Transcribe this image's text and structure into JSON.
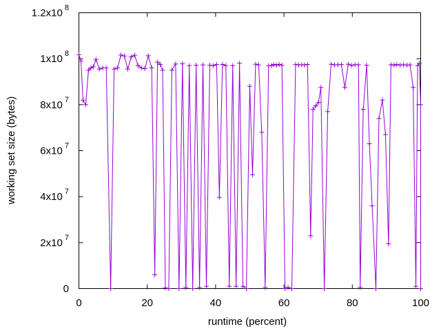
{
  "chart_data": {
    "type": "line",
    "xlabel": "runtime (percent)",
    "ylabel": "working set size (bytes)",
    "xlim": [
      0,
      100
    ],
    "ylim": [
      0,
      120000000
    ],
    "x_ticks": [
      {
        "value": 0,
        "label": "0"
      },
      {
        "value": 20,
        "label": "20"
      },
      {
        "value": 40,
        "label": "40"
      },
      {
        "value": 60,
        "label": "60"
      },
      {
        "value": 80,
        "label": "80"
      },
      {
        "value": 100,
        "label": "100"
      }
    ],
    "y_ticks": [
      {
        "value": 0,
        "mantissa": "0",
        "exponent": ""
      },
      {
        "value": 20000000,
        "mantissa": "2x10",
        "exponent": "7"
      },
      {
        "value": 40000000,
        "mantissa": "4x10",
        "exponent": "7"
      },
      {
        "value": 60000000,
        "mantissa": "6x10",
        "exponent": "7"
      },
      {
        "value": 80000000,
        "mantissa": "8x10",
        "exponent": "7"
      },
      {
        "value": 100000000,
        "mantissa": "1x10",
        "exponent": "8"
      },
      {
        "value": 120000000,
        "mantissa": "1.2x10",
        "exponent": "8"
      }
    ],
    "grid": false,
    "series": [
      {
        "color": "#9400d3",
        "marker": "plus",
        "points": [
          [
            0,
            101800000
          ],
          [
            0.6,
            99000000
          ],
          [
            1.2,
            82000000
          ],
          [
            2,
            80000000
          ],
          [
            2.8,
            95000000
          ],
          [
            3.5,
            96000000
          ],
          [
            4.2,
            96500000
          ],
          [
            5,
            99700000
          ],
          [
            6,
            95500000
          ],
          [
            7,
            96000000
          ],
          [
            8,
            96000000
          ],
          [
            9.3,
            0
          ],
          [
            10.3,
            95500000
          ],
          [
            11.3,
            96000000
          ],
          [
            12.3,
            101600000
          ],
          [
            13.3,
            101200000
          ],
          [
            14.3,
            95500000
          ],
          [
            15.3,
            100800000
          ],
          [
            16.3,
            101500000
          ],
          [
            17.3,
            97000000
          ],
          [
            18.3,
            96000000
          ],
          [
            19.3,
            95700000
          ],
          [
            20.3,
            101300000
          ],
          [
            21.3,
            96000000
          ],
          [
            22.2,
            6000000
          ],
          [
            23,
            98500000
          ],
          [
            23.8,
            97500000
          ],
          [
            24.5,
            95000000
          ],
          [
            25.3,
            300000
          ],
          [
            26.3,
            0
          ],
          [
            27.2,
            95000000
          ],
          [
            28.3,
            97700000
          ],
          [
            29.3,
            0
          ],
          [
            30.3,
            97800000
          ],
          [
            31.3,
            500000
          ],
          [
            32.3,
            97000000
          ],
          [
            33.3,
            0
          ],
          [
            34.3,
            97200000
          ],
          [
            35.3,
            500000
          ],
          [
            36.3,
            97300000
          ],
          [
            37.3,
            1000000
          ],
          [
            38.3,
            97200000
          ],
          [
            39.3,
            97000000
          ],
          [
            40.3,
            97500000
          ],
          [
            41.1,
            39700000
          ],
          [
            42,
            97500000
          ],
          [
            43,
            97000000
          ],
          [
            44,
            1000000
          ],
          [
            45,
            97000000
          ],
          [
            46,
            1000000
          ],
          [
            47,
            98000000
          ],
          [
            48,
            1000000
          ],
          [
            49,
            0
          ],
          [
            50,
            88000000
          ],
          [
            50.8,
            49500000
          ],
          [
            51.7,
            97600000
          ],
          [
            52.6,
            97300000
          ],
          [
            53.5,
            68000000
          ],
          [
            54.5,
            500000
          ],
          [
            55.5,
            97000000
          ],
          [
            56.3,
            97000000
          ],
          [
            57,
            97500000
          ],
          [
            57.8,
            97200000
          ],
          [
            58.6,
            97500000
          ],
          [
            59.4,
            97200000
          ],
          [
            60.3,
            0
          ],
          [
            61.2,
            500000
          ],
          [
            62.3,
            0
          ],
          [
            63.4,
            97500000
          ],
          [
            64.3,
            97300000
          ],
          [
            65.2,
            97400000
          ],
          [
            66,
            97300000
          ],
          [
            66.9,
            97500000
          ],
          [
            67.8,
            23000000
          ],
          [
            68.5,
            78000000
          ],
          [
            69.3,
            79500000
          ],
          [
            70.1,
            81000000
          ],
          [
            70.8,
            87500000
          ],
          [
            71.8,
            0
          ],
          [
            72.8,
            77000000
          ],
          [
            73.8,
            97600000
          ],
          [
            74.8,
            97300000
          ],
          [
            75.8,
            97400000
          ],
          [
            76.8,
            97500000
          ],
          [
            77.8,
            87500000
          ],
          [
            78.8,
            97600000
          ],
          [
            79.8,
            97100000
          ],
          [
            80.8,
            97400000
          ],
          [
            81.8,
            97400000
          ],
          [
            82.3,
            500000
          ],
          [
            83.2,
            78000000
          ],
          [
            84.2,
            97200000
          ],
          [
            85,
            63000000
          ],
          [
            85.8,
            36000000
          ],
          [
            86.9,
            0
          ],
          [
            87.8,
            74000000
          ],
          [
            88.8,
            82000000
          ],
          [
            89.7,
            67000000
          ],
          [
            90.6,
            19500000
          ],
          [
            91.3,
            97400000
          ],
          [
            92.2,
            97200000
          ],
          [
            93,
            97500000
          ],
          [
            94,
            97200000
          ],
          [
            95,
            97400000
          ],
          [
            96,
            97200000
          ],
          [
            96.9,
            97300000
          ],
          [
            97.8,
            87500000
          ],
          [
            98.6,
            1000000
          ],
          [
            99.1,
            97000000
          ],
          [
            99.6,
            98000000
          ],
          [
            100,
            80000000
          ],
          [
            100,
            0
          ]
        ]
      }
    ]
  }
}
